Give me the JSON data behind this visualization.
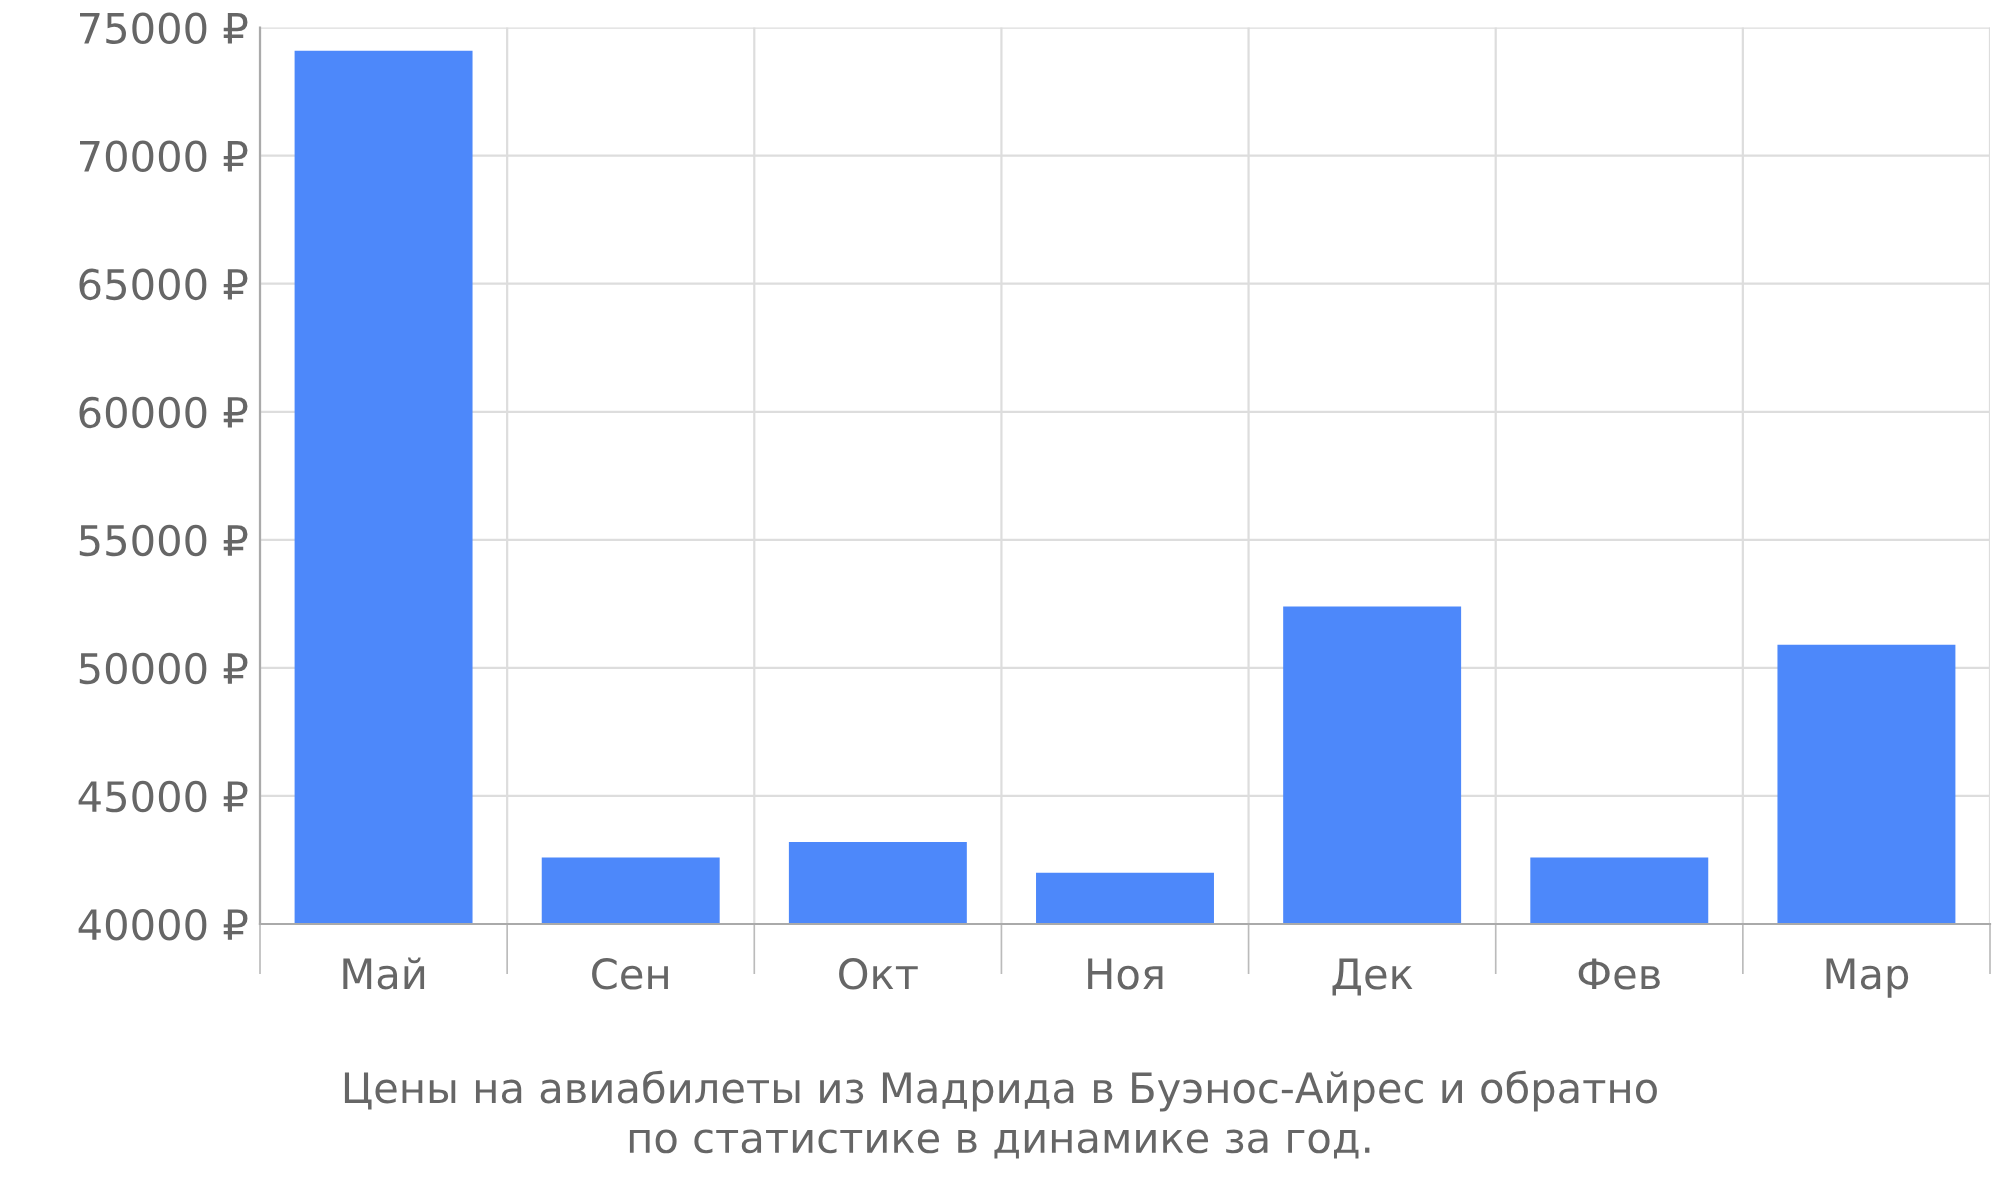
{
  "chart_data": {
    "type": "bar",
    "categories": [
      "Май",
      "Сен",
      "Окт",
      "Ноя",
      "Дек",
      "Фев",
      "Мар"
    ],
    "values": [
      74100,
      42600,
      43200,
      42000,
      52400,
      42600,
      50900
    ],
    "color": "#4d88fa",
    "ylim": [
      40000,
      75000
    ],
    "yticks": [
      {
        "value": 40000,
        "label": "40000 ₽"
      },
      {
        "value": 45000,
        "label": "45000 ₽"
      },
      {
        "value": 50000,
        "label": "50000 ₽"
      },
      {
        "value": 55000,
        "label": "55000 ₽"
      },
      {
        "value": 60000,
        "label": "60000 ₽"
      },
      {
        "value": 65000,
        "label": "65000 ₽"
      },
      {
        "value": 70000,
        "label": "70000 ₽"
      },
      {
        "value": 75000,
        "label": "75000 ₽"
      }
    ],
    "grid": true,
    "annotations": [
      "Цены на авиабилеты из Мадрида в Буэнос-Айрес и обратно\nпо статистике в динамике за год."
    ]
  }
}
